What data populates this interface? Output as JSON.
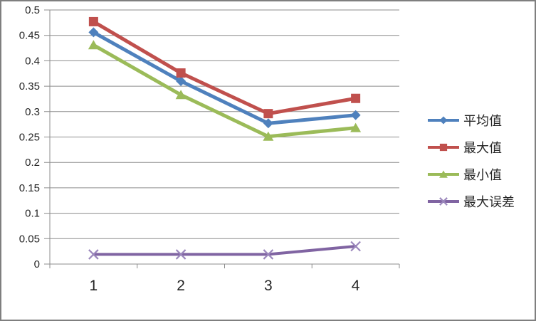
{
  "chart_data": {
    "type": "line",
    "title": "",
    "xlabel": "",
    "ylabel": "",
    "categories": [
      "1",
      "2",
      "3",
      "4"
    ],
    "series": [
      {
        "name": "平均值",
        "marker": "diamond",
        "color": "#4F81BD",
        "marker_color": "#4F81BD",
        "values": [
          0.456,
          0.36,
          0.277,
          0.293
        ]
      },
      {
        "name": "最大值",
        "marker": "square",
        "color": "#C0504D",
        "marker_color": "#C0504D",
        "values": [
          0.477,
          0.376,
          0.296,
          0.326
        ]
      },
      {
        "name": "最小值",
        "marker": "triangle",
        "color": "#9BBB59",
        "marker_color": "#9BBB59",
        "values": [
          0.431,
          0.333,
          0.251,
          0.268
        ]
      },
      {
        "name": "最大误差",
        "marker": "x",
        "color": "#8064A2",
        "marker_color": "#9B87BC",
        "values": [
          0.019,
          0.019,
          0.019,
          0.035
        ]
      }
    ],
    "ylim": [
      0,
      0.5
    ],
    "y_ticks": [
      0,
      0.05,
      0.1,
      0.15,
      0.2,
      0.25,
      0.3,
      0.35,
      0.4,
      0.45,
      0.5
    ],
    "y_tick_labels": [
      "0",
      "0.05",
      "0.1",
      "0.15",
      "0.2",
      "0.25",
      "0.3",
      "0.35",
      "0.4",
      "0.45",
      "0.5"
    ],
    "grid": true,
    "legend_position": "right"
  },
  "colors": {
    "gridline": "#8C8C8C",
    "axis": "#8C8C8C",
    "text": "#262626",
    "border": "#7F7F7F",
    "background": "#FFFFFF"
  }
}
